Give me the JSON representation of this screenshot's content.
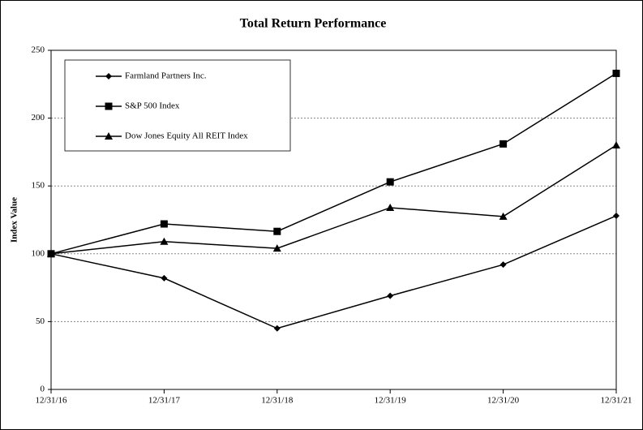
{
  "chart_data": {
    "type": "line",
    "title": "Total Return Performance",
    "y_label": "Index Value",
    "categories": [
      "12/31/16",
      "12/31/17",
      "12/31/18",
      "12/31/19",
      "12/31/20",
      "12/31/21"
    ],
    "series": [
      {
        "name": "Farmland Partners Inc.",
        "color": "#000000",
        "marker": "diamond",
        "values": [
          100,
          82,
          45,
          69,
          92,
          128
        ]
      },
      {
        "name": "S&P 500 Index",
        "color": "#000000",
        "marker": "square",
        "values": [
          100,
          122,
          116.5,
          153,
          181,
          233
        ]
      },
      {
        "name": "Dow Jones Equity All REIT Index",
        "color": "#000000",
        "marker": "triangle",
        "values": [
          100,
          109,
          104,
          134,
          127.5,
          180
        ]
      }
    ],
    "ylim": [
      0,
      250
    ],
    "yticks": [
      0,
      50,
      100,
      150,
      200,
      250
    ],
    "grid": true
  }
}
